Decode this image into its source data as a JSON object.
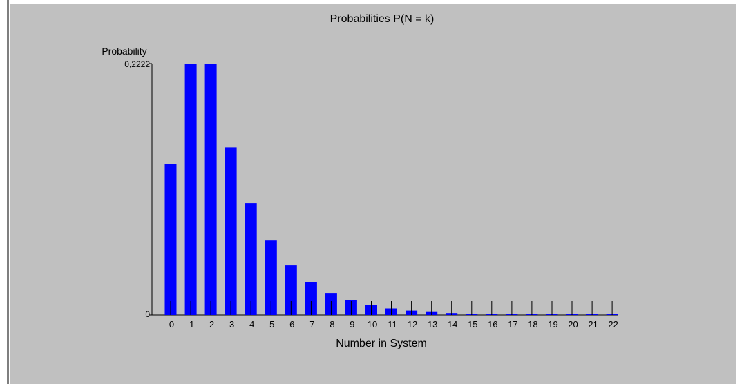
{
  "chart_data": {
    "type": "bar",
    "title": "Probabilities P(N = k)",
    "xlabel": "Number in System",
    "ylabel": "Probability",
    "categories": [
      "0",
      "1",
      "2",
      "3",
      "4",
      "5",
      "6",
      "7",
      "8",
      "9",
      "10",
      "11",
      "12",
      "13",
      "14",
      "15",
      "16",
      "17",
      "18",
      "19",
      "20",
      "21",
      "22"
    ],
    "values": [
      0.1333,
      0.2222,
      0.2222,
      0.1481,
      0.0988,
      0.0658,
      0.0439,
      0.0293,
      0.0195,
      0.013,
      0.0087,
      0.0058,
      0.0039,
      0.0026,
      0.0017,
      0.0011,
      0.0008,
      0.0005,
      0.0003,
      0.0002,
      0.0002,
      0.0001,
      0.0001
    ],
    "ylim": [
      0,
      0.2222
    ],
    "y_tick_labels": [
      "0",
      "0,2222"
    ],
    "bar_color": "#0000ff",
    "background_color": "#c0c0c0",
    "grid": false
  }
}
